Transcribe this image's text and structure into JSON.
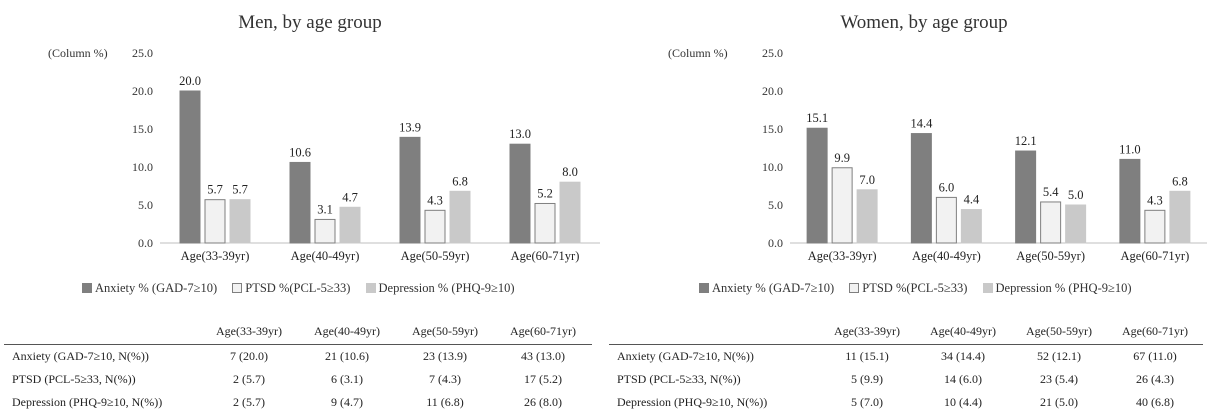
{
  "units_label": "(Column  %)",
  "legend": [
    {
      "label": "Anxiety % (GAD-7≥10)",
      "color": "#7f7f7f",
      "border": "#7f7f7f"
    },
    {
      "label": "PTSD %(PCL-5≥33)",
      "color": "#f2f2f2",
      "border": "#7f7f7f"
    },
    {
      "label": "Depression % (PHQ-9≥10)",
      "color": "#c9c9c9",
      "border": "#c9c9c9"
    }
  ],
  "chart_data": [
    {
      "type": "bar",
      "title": "Men, by age group",
      "categories": [
        "Age(33-39yr)",
        "Age(40-49yr)",
        "Age(50-59yr)",
        "Age(60-71yr)"
      ],
      "series": [
        {
          "name": "Anxiety % (GAD-7≥10)",
          "values": [
            20.0,
            10.6,
            13.9,
            13.0
          ]
        },
        {
          "name": "PTSD %(PCL-5≥33)",
          "values": [
            5.7,
            3.1,
            4.3,
            5.2
          ]
        },
        {
          "name": "Depression % (PHQ-9≥10)",
          "values": [
            5.7,
            4.7,
            6.8,
            8.0
          ]
        }
      ],
      "ylim": [
        0,
        25
      ],
      "yticks": [
        "0.0",
        "5.0",
        "10.0",
        "15.0",
        "20.0",
        "25.0"
      ],
      "grid": false,
      "legend_position": "bottom"
    },
    {
      "type": "bar",
      "title": "Women, by age group",
      "categories": [
        "Age(33-39yr)",
        "Age(40-49yr)",
        "Age(50-59yr)",
        "Age(60-71yr)"
      ],
      "series": [
        {
          "name": "Anxiety % (GAD-7≥10)",
          "values": [
            15.1,
            14.4,
            12.1,
            11.0
          ]
        },
        {
          "name": "PTSD %(PCL-5≥33)",
          "values": [
            9.9,
            6.0,
            5.4,
            4.3
          ]
        },
        {
          "name": "Depression % (PHQ-9≥10)",
          "values": [
            7.0,
            4.4,
            5.0,
            6.8
          ]
        }
      ],
      "ylim": [
        0,
        25
      ],
      "yticks": [
        "0.0",
        "5.0",
        "10.0",
        "15.0",
        "20.0",
        "25.0"
      ],
      "grid": false,
      "legend_position": "bottom"
    }
  ],
  "tables": [
    {
      "headers": [
        "Age(33-39yr)",
        "Age(40-49yr)",
        "Age(50-59yr)",
        "Age(60-71yr)"
      ],
      "rows": [
        {
          "label": "Anxiety (GAD-7≥10, N(%))",
          "cells": [
            "7 (20.0)",
            "21 (10.6)",
            "23 (13.9)",
            "43 (13.0)"
          ]
        },
        {
          "label": "PTSD (PCL-5≥33,  N(%))",
          "cells": [
            "2 (5.7)",
            "6 (3.1)",
            "7 (4.3)",
            "17 (5.2)"
          ]
        },
        {
          "label": "Depression (PHQ-9≥10,  N(%))",
          "cells": [
            "2 (5.7)",
            "9 (4.7)",
            "11 (6.8)",
            "26 (8.0)"
          ]
        }
      ]
    },
    {
      "headers": [
        "Age(33-39yr)",
        "Age(40-49yr)",
        "Age(50-59yr)",
        "Age(60-71yr)"
      ],
      "rows": [
        {
          "label": "Anxiety (GAD-7≥10, N(%))",
          "cells": [
            "11 (15.1)",
            "34 (14.4)",
            "52 (12.1)",
            "67 (11.0)"
          ]
        },
        {
          "label": "PTSD (PCL-5≥33,  N(%))",
          "cells": [
            "5 (9.9)",
            "14 (6.0)",
            "23 (5.4)",
            "26 (4.3)"
          ]
        },
        {
          "label": "Depression (PHQ-9≥10,  N(%))",
          "cells": [
            "5 (7.0)",
            "10 (4.4)",
            "21 (5.0)",
            "40 (6.8)"
          ]
        }
      ]
    }
  ]
}
